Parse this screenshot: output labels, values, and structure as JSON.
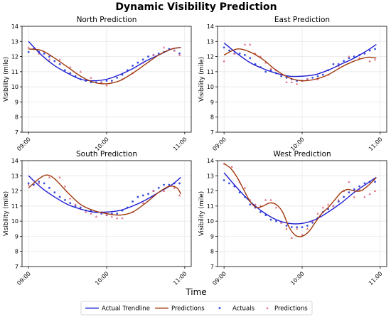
{
  "title": "Dynamic Visibility Prediction",
  "xlabel": "Time",
  "colors": {
    "trend": "#1f1fd2",
    "pred": "#a0380c",
    "actuals": "#3b4fe0",
    "pred_pts": "#e07080"
  },
  "legend": {
    "trend": "Actual Trendline",
    "pred": "Predictions",
    "actuals": "Actuals",
    "pred_pts": "Predictions"
  },
  "chart_data": [
    {
      "type": "line",
      "title": "North Prediction",
      "ylabel": "Visibility (mile)",
      "ylim": [
        7,
        14
      ],
      "yticks": [
        7,
        8,
        9,
        10,
        11,
        12,
        13,
        14
      ],
      "xlim": [
        -5,
        125
      ],
      "xticks": [
        0,
        60,
        120
      ],
      "xticklabels": [
        "09:00",
        "10:00",
        "11:00"
      ],
      "grid": true,
      "trend": {
        "x": [
          0,
          10,
          20,
          30,
          40,
          50,
          60,
          70,
          80,
          90,
          100,
          110,
          117
        ],
        "y": [
          13.0,
          12.1,
          11.4,
          10.9,
          10.5,
          10.4,
          10.5,
          10.8,
          11.2,
          11.7,
          12.1,
          12.5,
          12.6
        ]
      },
      "prediction": {
        "x": [
          0,
          10,
          20,
          30,
          40,
          50,
          60,
          70,
          80,
          90,
          100,
          110,
          117
        ],
        "y": [
          12.5,
          12.4,
          11.9,
          11.3,
          10.7,
          10.3,
          10.2,
          10.4,
          10.9,
          11.5,
          12.1,
          12.5,
          12.6
        ]
      },
      "actuals": {
        "x": [
          0,
          4,
          8,
          12,
          16,
          20,
          24,
          28,
          32,
          36,
          40,
          44,
          48,
          52,
          56,
          60,
          64,
          68,
          72,
          76,
          80,
          84,
          88,
          92,
          96,
          100,
          104,
          108,
          112,
          116
        ],
        "y": [
          12.3,
          12.5,
          12.3,
          12.2,
          12.0,
          11.7,
          11.5,
          11.1,
          10.9,
          10.7,
          10.5,
          10.4,
          10.3,
          10.3,
          10.3,
          10.4,
          10.4,
          10.6,
          10.8,
          11.1,
          11.4,
          11.6,
          11.8,
          12.0,
          12.1,
          12.2,
          12.3,
          12.5,
          12.4,
          12.2
        ]
      },
      "prediction_points": {
        "x": [
          0,
          8,
          16,
          24,
          32,
          40,
          48,
          56,
          60,
          64,
          72,
          80,
          88,
          96,
          104,
          112,
          116
        ],
        "y": [
          12.6,
          12.2,
          11.8,
          11.8,
          11.3,
          11.0,
          10.6,
          10.3,
          10.1,
          10.3,
          10.5,
          10.9,
          11.6,
          12.1,
          12.6,
          12.4,
          12.1
        ]
      }
    },
    {
      "type": "line",
      "title": "East Prediction",
      "ylabel": "Visibility (mile)",
      "ylim": [
        7,
        14
      ],
      "yticks": [
        7,
        8,
        9,
        10,
        11,
        12,
        13,
        14
      ],
      "xlim": [
        -5,
        125
      ],
      "xticks": [
        0,
        60,
        120
      ],
      "xticklabels": [
        "09:00",
        "10:00",
        "11:00"
      ],
      "grid": true,
      "trend": {
        "x": [
          0,
          10,
          20,
          30,
          40,
          50,
          60,
          70,
          80,
          90,
          100,
          110,
          117
        ],
        "y": [
          12.9,
          12.2,
          11.6,
          11.2,
          10.9,
          10.7,
          10.7,
          10.8,
          11.1,
          11.5,
          11.9,
          12.4,
          12.8
        ]
      },
      "prediction": {
        "x": [
          0,
          10,
          20,
          30,
          40,
          50,
          60,
          70,
          80,
          90,
          100,
          110,
          117
        ],
        "y": [
          12.1,
          12.5,
          12.3,
          11.8,
          11.1,
          10.6,
          10.4,
          10.5,
          10.8,
          11.3,
          11.7,
          11.95,
          11.9
        ]
      },
      "actuals": {
        "x": [
          0,
          4,
          8,
          12,
          16,
          20,
          24,
          28,
          32,
          36,
          40,
          44,
          48,
          52,
          56,
          60,
          64,
          68,
          72,
          76,
          80,
          84,
          88,
          92,
          96,
          100,
          104,
          108,
          112,
          116
        ],
        "y": [
          12.6,
          12.4,
          12.2,
          12.2,
          12.1,
          11.9,
          11.5,
          11.3,
          11.0,
          11.1,
          10.9,
          10.7,
          10.6,
          10.5,
          10.4,
          10.4,
          10.5,
          10.6,
          10.7,
          10.8,
          11.1,
          11.5,
          11.5,
          11.7,
          11.9,
          12.0,
          12.1,
          12.2,
          12.4,
          12.5
        ]
      },
      "prediction_points": {
        "x": [
          0,
          8,
          16,
          20,
          24,
          28,
          32,
          36,
          40,
          44,
          48,
          52,
          56,
          60,
          64,
          72,
          80,
          88,
          96,
          104,
          112,
          116
        ],
        "y": [
          11.7,
          12.2,
          12.8,
          12.8,
          12.2,
          12.0,
          11.6,
          11.2,
          11.1,
          10.8,
          10.3,
          10.3,
          10.2,
          10.4,
          10.5,
          10.5,
          10.8,
          11.4,
          12.0,
          11.9,
          11.7,
          11.8
        ]
      }
    },
    {
      "type": "line",
      "title": "South Prediction",
      "ylabel": "Visibility (mile)",
      "ylim": [
        7,
        14
      ],
      "yticks": [
        7,
        8,
        9,
        10,
        11,
        12,
        13,
        14
      ],
      "xlim": [
        -5,
        125
      ],
      "xticks": [
        0,
        60,
        120
      ],
      "xticklabels": [
        "09:00",
        "10:00",
        "11:00"
      ],
      "grid": true,
      "trend": {
        "x": [
          0,
          10,
          20,
          30,
          40,
          50,
          60,
          70,
          80,
          90,
          100,
          110,
          117
        ],
        "y": [
          13.0,
          12.2,
          11.6,
          11.1,
          10.8,
          10.6,
          10.6,
          10.7,
          11.0,
          11.4,
          11.9,
          12.4,
          12.9
        ]
      },
      "prediction": {
        "x": [
          0,
          8,
          14,
          20,
          30,
          40,
          50,
          60,
          70,
          80,
          90,
          100,
          108,
          114,
          117
        ],
        "y": [
          12.2,
          12.8,
          13.05,
          12.8,
          11.9,
          11.1,
          10.7,
          10.5,
          10.4,
          10.6,
          11.2,
          11.9,
          12.3,
          12.2,
          11.8
        ]
      },
      "actuals": {
        "x": [
          0,
          4,
          8,
          12,
          16,
          20,
          24,
          28,
          32,
          36,
          40,
          44,
          48,
          52,
          56,
          60,
          64,
          68,
          72,
          76,
          80,
          84,
          88,
          92,
          96,
          100,
          104,
          108,
          112,
          116
        ],
        "y": [
          12.5,
          12.4,
          12.6,
          12.5,
          12.2,
          11.9,
          11.6,
          11.4,
          11.2,
          11.0,
          10.9,
          10.7,
          10.7,
          10.6,
          10.5,
          10.4,
          10.5,
          10.5,
          10.7,
          10.9,
          11.3,
          11.6,
          11.7,
          11.8,
          12.0,
          12.2,
          12.4,
          12.4,
          12.5,
          12.5
        ]
      },
      "prediction_points": {
        "x": [
          0,
          8,
          16,
          24,
          28,
          32,
          36,
          40,
          44,
          48,
          52,
          56,
          60,
          64,
          68,
          72,
          80,
          88,
          96,
          104,
          112,
          116
        ],
        "y": [
          12.4,
          12.5,
          12.9,
          12.9,
          12.3,
          11.5,
          11.1,
          10.8,
          10.6,
          10.5,
          10.3,
          10.6,
          10.4,
          10.3,
          10.2,
          10.2,
          10.6,
          11.2,
          12.0,
          12.0,
          12.2,
          11.7
        ]
      }
    },
    {
      "type": "line",
      "title": "West Prediction",
      "ylabel": "Visibility (mile)",
      "ylim": [
        7,
        14
      ],
      "yticks": [
        7,
        8,
        9,
        10,
        11,
        12,
        13,
        14
      ],
      "xlim": [
        -5,
        125
      ],
      "xticks": [
        0,
        60,
        120
      ],
      "xticklabels": [
        "09:00",
        "10:00",
        "11:00"
      ],
      "grid": true,
      "trend": {
        "x": [
          0,
          10,
          20,
          30,
          40,
          50,
          60,
          70,
          80,
          90,
          100,
          110,
          117
        ],
        "y": [
          13.2,
          12.2,
          11.3,
          10.6,
          10.1,
          9.85,
          9.85,
          10.1,
          10.6,
          11.2,
          11.9,
          12.5,
          12.9
        ]
      },
      "prediction": {
        "x": [
          0,
          5,
          10,
          15,
          20,
          25,
          30,
          35,
          40,
          45,
          50,
          55,
          60,
          65,
          70,
          75,
          80,
          85,
          90,
          95,
          100,
          105,
          110,
          115,
          117
        ],
        "y": [
          13.8,
          13.5,
          12.9,
          12.1,
          11.3,
          10.9,
          11.0,
          11.2,
          11.1,
          10.6,
          9.6,
          9.05,
          9.0,
          9.3,
          9.9,
          10.5,
          10.9,
          11.4,
          11.9,
          12.1,
          12.0,
          12.0,
          12.3,
          12.7,
          12.9
        ]
      },
      "actuals": {
        "x": [
          0,
          4,
          8,
          12,
          16,
          20,
          24,
          28,
          32,
          36,
          40,
          44,
          48,
          52,
          56,
          60,
          64,
          68,
          72,
          76,
          80,
          84,
          88,
          92,
          96,
          100,
          104,
          108,
          112,
          116
        ],
        "y": [
          12.7,
          12.5,
          12.3,
          11.9,
          11.6,
          11.1,
          10.9,
          10.6,
          10.4,
          10.1,
          10.0,
          9.9,
          9.7,
          9.6,
          9.6,
          9.6,
          9.7,
          9.9,
          10.2,
          10.6,
          10.8,
          11.0,
          11.3,
          11.6,
          11.9,
          12.1,
          12.3,
          12.5,
          12.6,
          12.6
        ]
      },
      "prediction_points": {
        "x": [
          0,
          6,
          12,
          16,
          20,
          24,
          28,
          32,
          36,
          40,
          44,
          48,
          52,
          56,
          60,
          64,
          68,
          72,
          76,
          80,
          84,
          88,
          92,
          96,
          100,
          104,
          108,
          112,
          116
        ],
        "y": [
          13.8,
          13.6,
          12.6,
          12.2,
          11.4,
          11.1,
          11.0,
          11.4,
          11.4,
          10.9,
          9.9,
          9.5,
          8.9,
          9.5,
          9.1,
          9.5,
          10.0,
          10.5,
          10.9,
          11.1,
          11.0,
          11.4,
          12.0,
          12.6,
          11.6,
          12.1,
          11.6,
          11.8,
          12.0
        ]
      }
    }
  ]
}
